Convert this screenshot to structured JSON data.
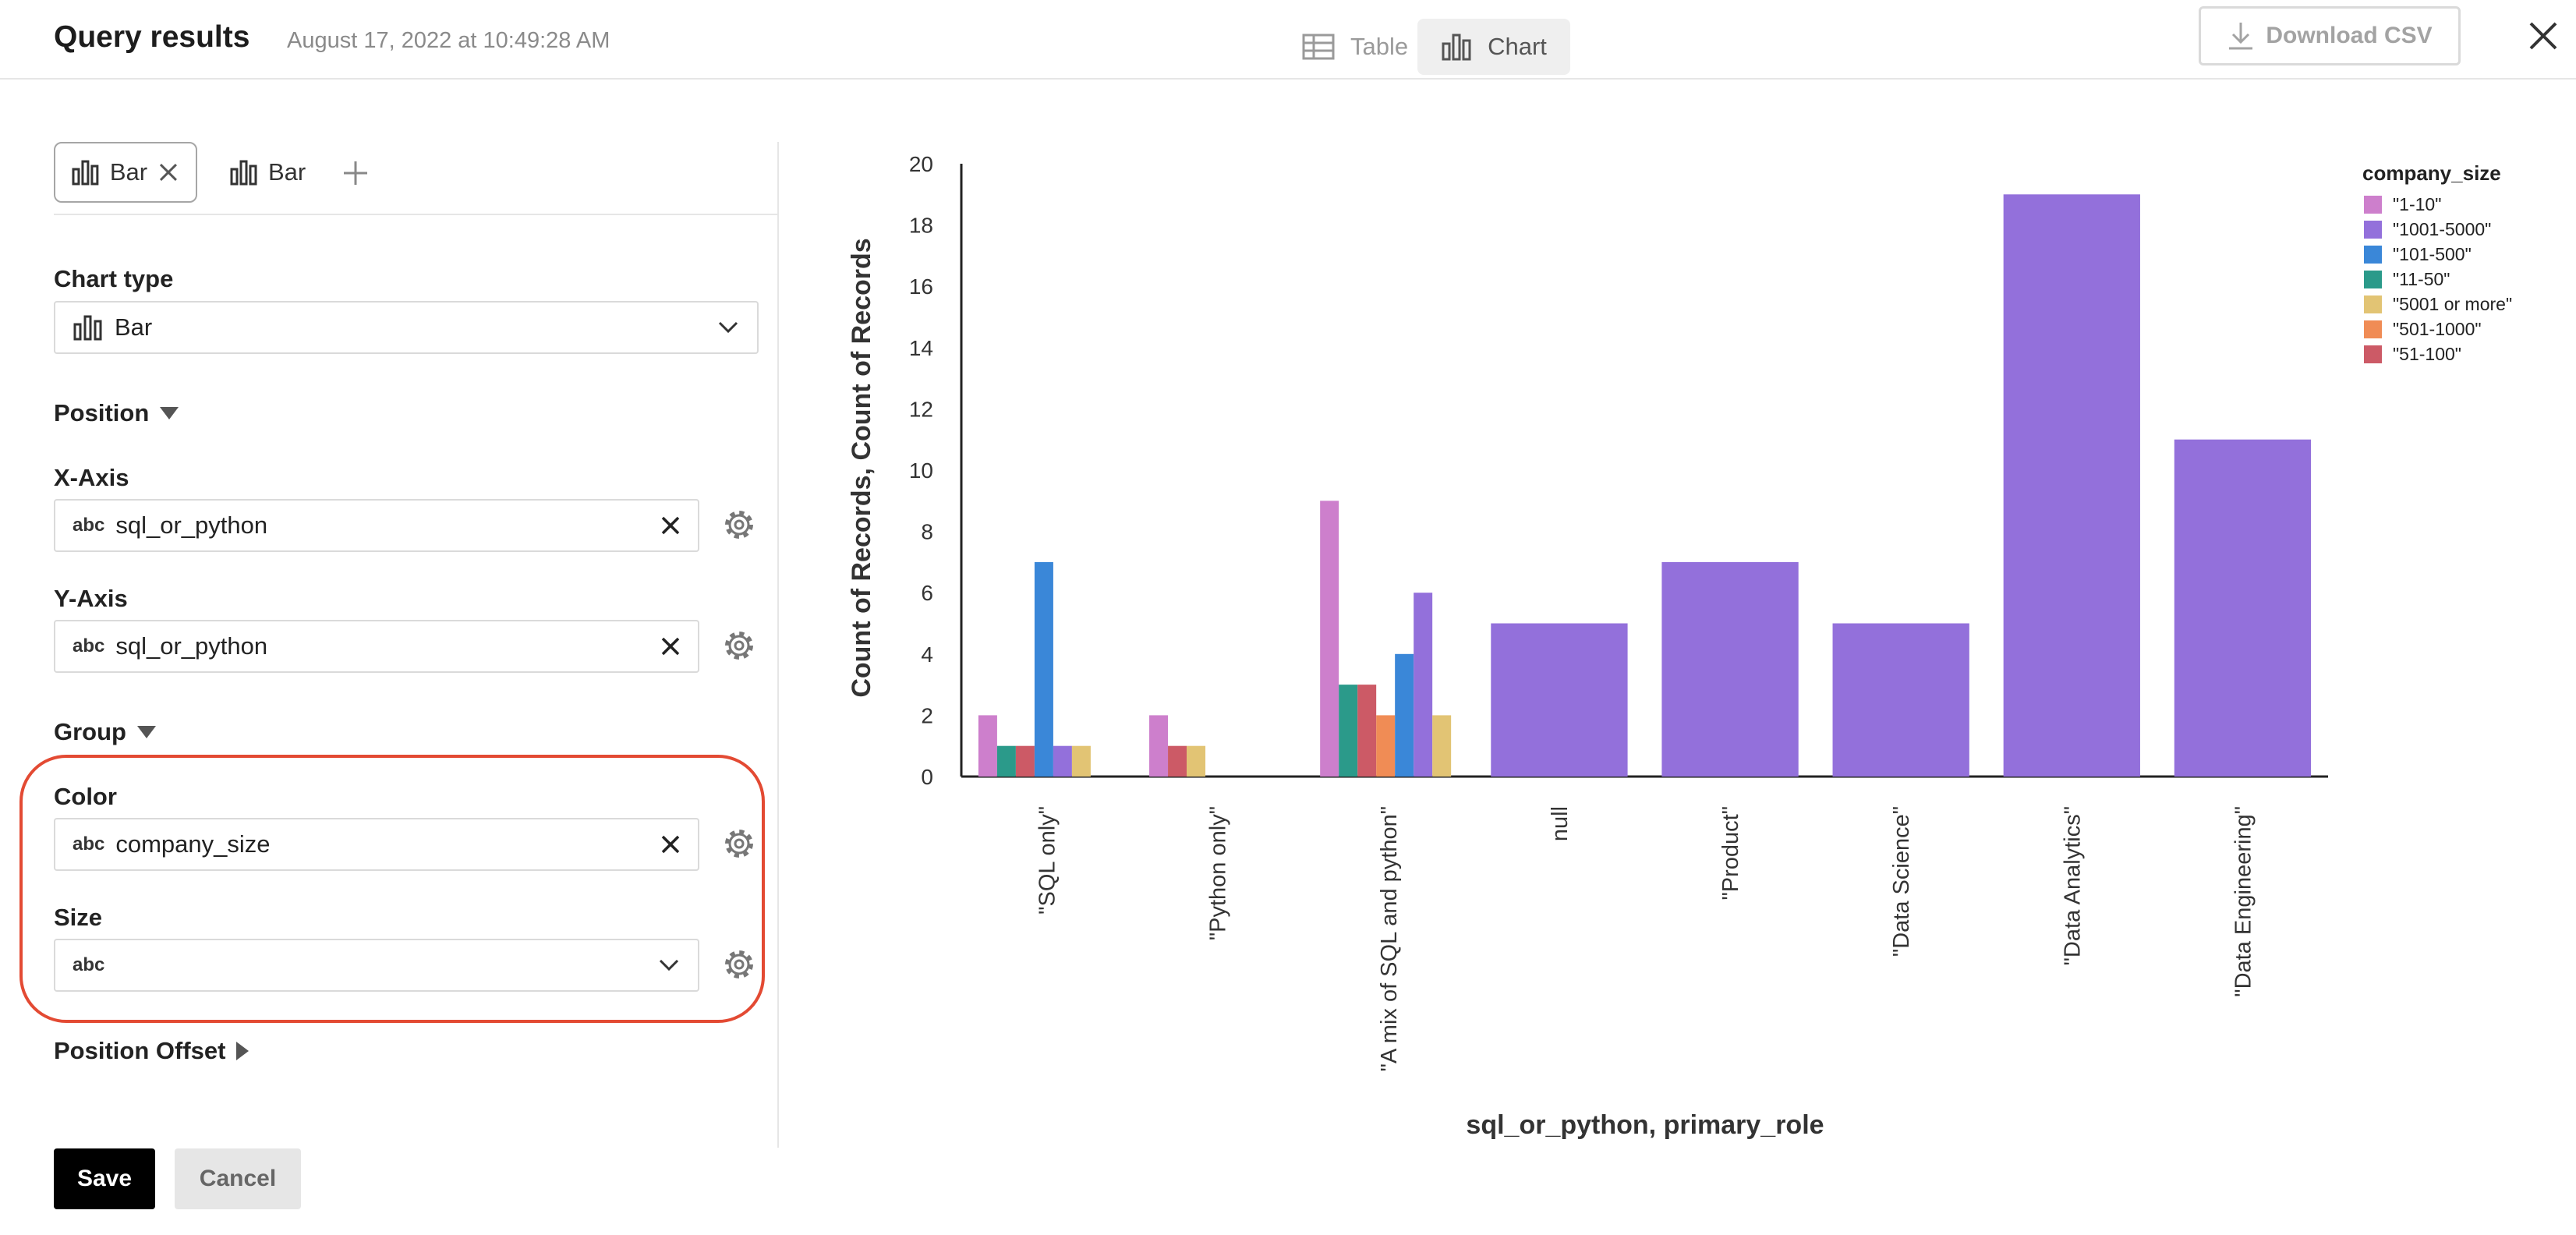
{
  "header": {
    "title": "Query results",
    "timestamp": "August 17, 2022 at 10:49:28 AM",
    "view_tabs": [
      {
        "label": "Table",
        "icon": "table-icon",
        "active": false
      },
      {
        "label": "Chart",
        "icon": "bar-chart-icon",
        "active": true
      }
    ],
    "download_label": "Download CSV"
  },
  "chart_tabs": [
    {
      "label": "Bar",
      "selected": true
    },
    {
      "label": "Bar",
      "selected": false
    }
  ],
  "config": {
    "chart_type_label": "Chart type",
    "chart_type_value": "Bar",
    "position_label": "Position",
    "x_axis_label": "X-Axis",
    "x_axis_value": "sql_or_python",
    "y_axis_label": "Y-Axis",
    "y_axis_value": "sql_or_python",
    "group_label": "Group",
    "color_label": "Color",
    "color_value": "company_size",
    "size_label": "Size",
    "size_value": "",
    "position_offset_label": "Position Offset",
    "type_badge": "abc",
    "save_label": "Save",
    "cancel_label": "Cancel"
  },
  "colors": {
    "accent_highlight": "#e34a33",
    "save_bg": "#000000"
  },
  "chart_data": {
    "type": "bar",
    "xlabel": "sql_or_python, primary_role",
    "ylabel": "Count of Records, Count of Records",
    "ylim": [
      0,
      20
    ],
    "yticks": [
      0,
      2,
      4,
      6,
      8,
      10,
      12,
      14,
      16,
      18,
      20
    ],
    "legend_title": "company_size",
    "legend_position": "top-right",
    "series_colors": {
      "\"1-10\"": "#cd7fcc",
      "\"1001-5000\"": "#9370db",
      "\"101-500\"": "#3a87d8",
      "\"11-50\"": "#2b9a8a",
      "\"5001 or more\"": "#e2c474",
      "\"501-1000\"": "#f08c55",
      "\"51-100\"": "#cc5a66"
    },
    "legend": [
      "\"1-10\"",
      "\"1001-5000\"",
      "\"101-500\"",
      "\"11-50\"",
      "\"5001 or more\"",
      "\"501-1000\"",
      "\"51-100\""
    ],
    "categories": [
      {
        "label": "\"SQL only\"",
        "bars": [
          {
            "series": "\"1-10\"",
            "value": 2
          },
          {
            "series": "\"11-50\"",
            "value": 1
          },
          {
            "series": "\"51-100\"",
            "value": 1
          },
          {
            "series": "\"101-500\"",
            "value": 7
          },
          {
            "series": "\"1001-5000\"",
            "value": 1
          },
          {
            "series": "\"5001 or more\"",
            "value": 1
          }
        ]
      },
      {
        "label": "\"Python only\"",
        "bars": [
          {
            "series": "\"1-10\"",
            "value": 2
          },
          {
            "series": "\"51-100\"",
            "value": 1
          },
          {
            "series": "\"5001 or more\"",
            "value": 1
          }
        ]
      },
      {
        "label": "\"A mix of SQL and python\"",
        "bars": [
          {
            "series": "\"1-10\"",
            "value": 9
          },
          {
            "series": "\"11-50\"",
            "value": 3
          },
          {
            "series": "\"51-100\"",
            "value": 3
          },
          {
            "series": "\"501-1000\"",
            "value": 2
          },
          {
            "series": "\"101-500\"",
            "value": 4
          },
          {
            "series": "\"1001-5000\"",
            "value": 6
          },
          {
            "series": "\"5001 or more\"",
            "value": 2
          }
        ]
      },
      {
        "label": "null",
        "bars": [
          {
            "series": "\"1001-5000\"",
            "value": 5
          }
        ]
      },
      {
        "label": "\"Product\"",
        "bars": [
          {
            "series": "\"1001-5000\"",
            "value": 7
          }
        ]
      },
      {
        "label": "\"Data Science\"",
        "bars": [
          {
            "series": "\"1001-5000\"",
            "value": 5
          }
        ]
      },
      {
        "label": "\"Data Analytics\"",
        "bars": [
          {
            "series": "\"1001-5000\"",
            "value": 19
          }
        ]
      },
      {
        "label": "\"Data Engineering\"",
        "bars": [
          {
            "series": "\"1001-5000\"",
            "value": 11
          }
        ]
      }
    ]
  }
}
